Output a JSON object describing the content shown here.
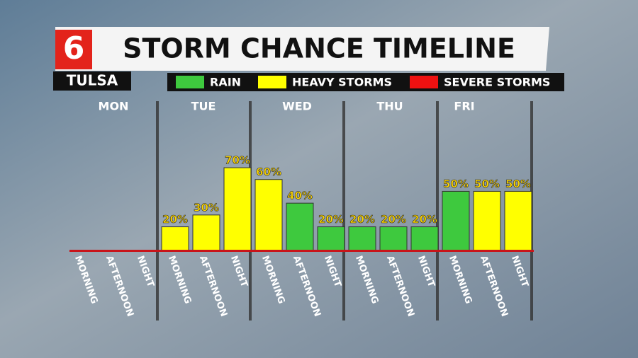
{
  "chart_data": {
    "type": "bar",
    "title": "STORM CHANCE TIMELINE",
    "location": "TULSA",
    "logo": "6",
    "legend": [
      {
        "name": "RAIN",
        "color": "#3ec93e"
      },
      {
        "name": "HEAVY STORMS",
        "color": "#ffff00"
      },
      {
        "name": "SEVERE STORMS",
        "color": "#ee1111"
      }
    ],
    "days": [
      "MON",
      "TUE",
      "WED",
      "THU",
      "FRI"
    ],
    "categories": [
      "MORNING",
      "AFTERNOON",
      "NIGHT",
      "MORNING",
      "AFTERNOON",
      "NIGHT",
      "MORNING",
      "AFTERNOON",
      "NIGHT",
      "MORNING",
      "AFTERNOON",
      "NIGHT",
      "MORNING",
      "AFTERNOON",
      "NIGHT"
    ],
    "values": [
      null,
      null,
      null,
      20,
      30,
      70,
      60,
      40,
      20,
      20,
      20,
      20,
      50,
      50,
      50
    ],
    "value_labels": [
      null,
      null,
      null,
      "20%",
      "30%",
      "70%",
      "60%",
      "40%",
      "20%",
      "20%",
      "20%",
      "20%",
      "50%",
      "50%",
      "50%"
    ],
    "colors": [
      null,
      null,
      null,
      "#ffff00",
      "#ffff00",
      "#ffff00",
      "#ffff00",
      "#3ec93e",
      "#3ec93e",
      "#3ec93e",
      "#3ec93e",
      "#3ec93e",
      "#3ec93e",
      "#ffff00",
      "#ffff00"
    ]
  }
}
